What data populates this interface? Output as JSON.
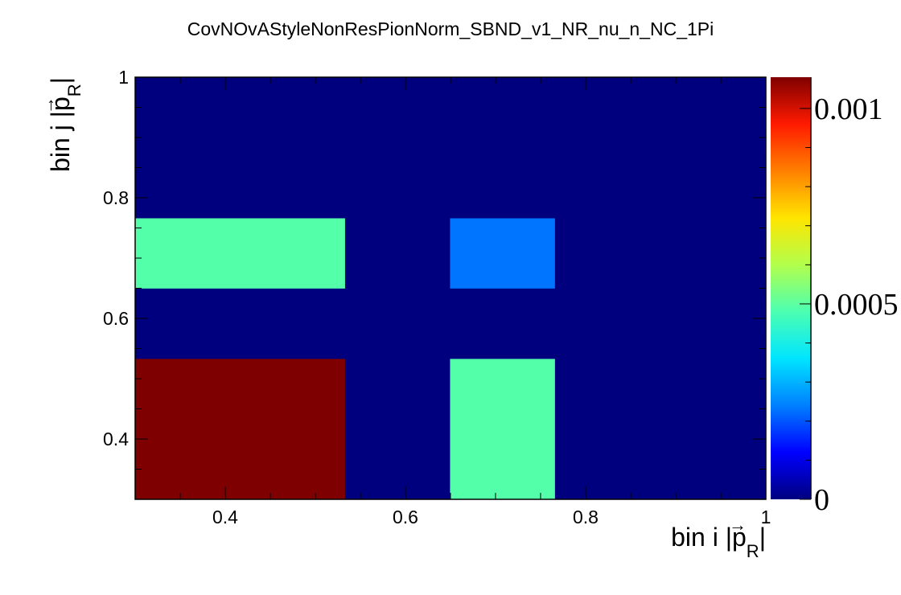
{
  "chart_data": {
    "type": "heatmap",
    "title": "CovNOvAStyleNonResPionNorm_SBND_v1_NR_nu_n_NC_1Pi",
    "xlabel": {
      "prefix": "bin i |",
      "p": "p",
      "sub": "R",
      "suffix": "|"
    },
    "ylabel": {
      "prefix": "bin j |",
      "p": "p",
      "sub": "R",
      "suffix": "|"
    },
    "xlim": [
      0.3,
      1.0
    ],
    "ylim": [
      0.3,
      1.0
    ],
    "x_ticks": [
      0.4,
      0.6,
      0.8,
      1
    ],
    "x_tick_labels": [
      "0.4",
      "0.6",
      "0.8",
      "1"
    ],
    "y_ticks": [
      0.4,
      0.6,
      0.8,
      1
    ],
    "y_tick_labels": [
      "0.4",
      "0.6",
      "0.8",
      "1"
    ],
    "x_bin_edges": [
      0.3,
      0.533,
      0.6495,
      0.766,
      1.0
    ],
    "y_bin_edges": [
      0.3,
      0.533,
      0.6495,
      0.766,
      1.0
    ],
    "values": [
      [
        0.00108,
        0.0,
        0.00049,
        0.0
      ],
      [
        0.0,
        0.0,
        0.0,
        0.0
      ],
      [
        0.00049,
        0.0,
        0.00023,
        0.0
      ],
      [
        0.0,
        0.0,
        0.0,
        0.0
      ]
    ],
    "z_range": [
      0.0,
      0.00108
    ],
    "colorbar_ticks": [
      0,
      0.0005,
      0.001
    ],
    "colorbar_labels": [
      "0",
      "0.0005",
      "0.001"
    ],
    "colormap": [
      "#00007f",
      "#0000ff",
      "#0080ff",
      "#00e5ff",
      "#4cffb2",
      "#b2ff4c",
      "#ffe500",
      "#ff8000",
      "#ff1a00",
      "#7f0000"
    ],
    "background_color": "#00007f"
  }
}
